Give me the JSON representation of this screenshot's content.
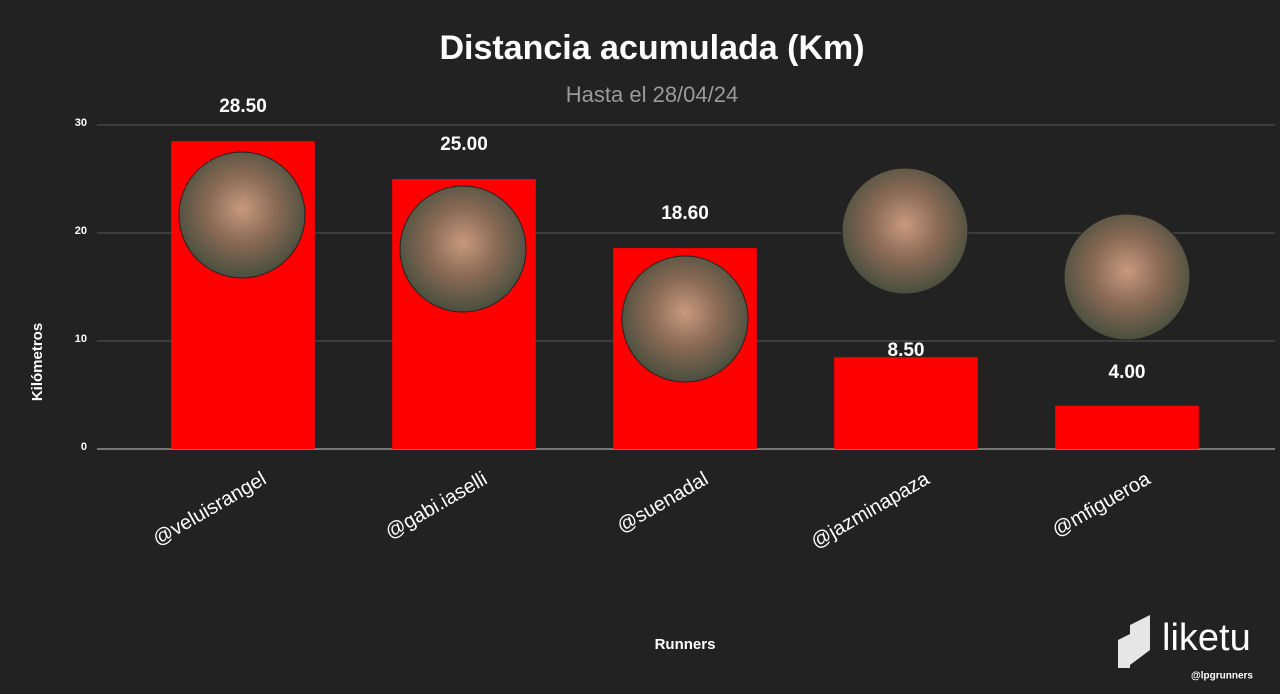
{
  "chart_data": {
    "type": "bar",
    "title": "Distancia acumulada (Km)",
    "subtitle": "Hasta el 28/04/24",
    "x_label": "Runners",
    "y_label": "Kilómetros",
    "categories": [
      "@veluisrangel",
      "@gabi.iaselli",
      "@suenadal",
      "@jazminapaza",
      "@mfigueroa"
    ],
    "values": [
      28.5,
      25,
      18.6,
      8.5,
      4
    ],
    "value_labels": [
      "28.50",
      "25.00",
      "18.60",
      "8.50",
      "4.00"
    ],
    "color": "#ff0000",
    "ylim": [
      0,
      30
    ],
    "yticks": [
      0,
      10,
      20,
      30
    ],
    "grid": true,
    "watermark": "liketu",
    "credit": "@lpgrunners"
  }
}
